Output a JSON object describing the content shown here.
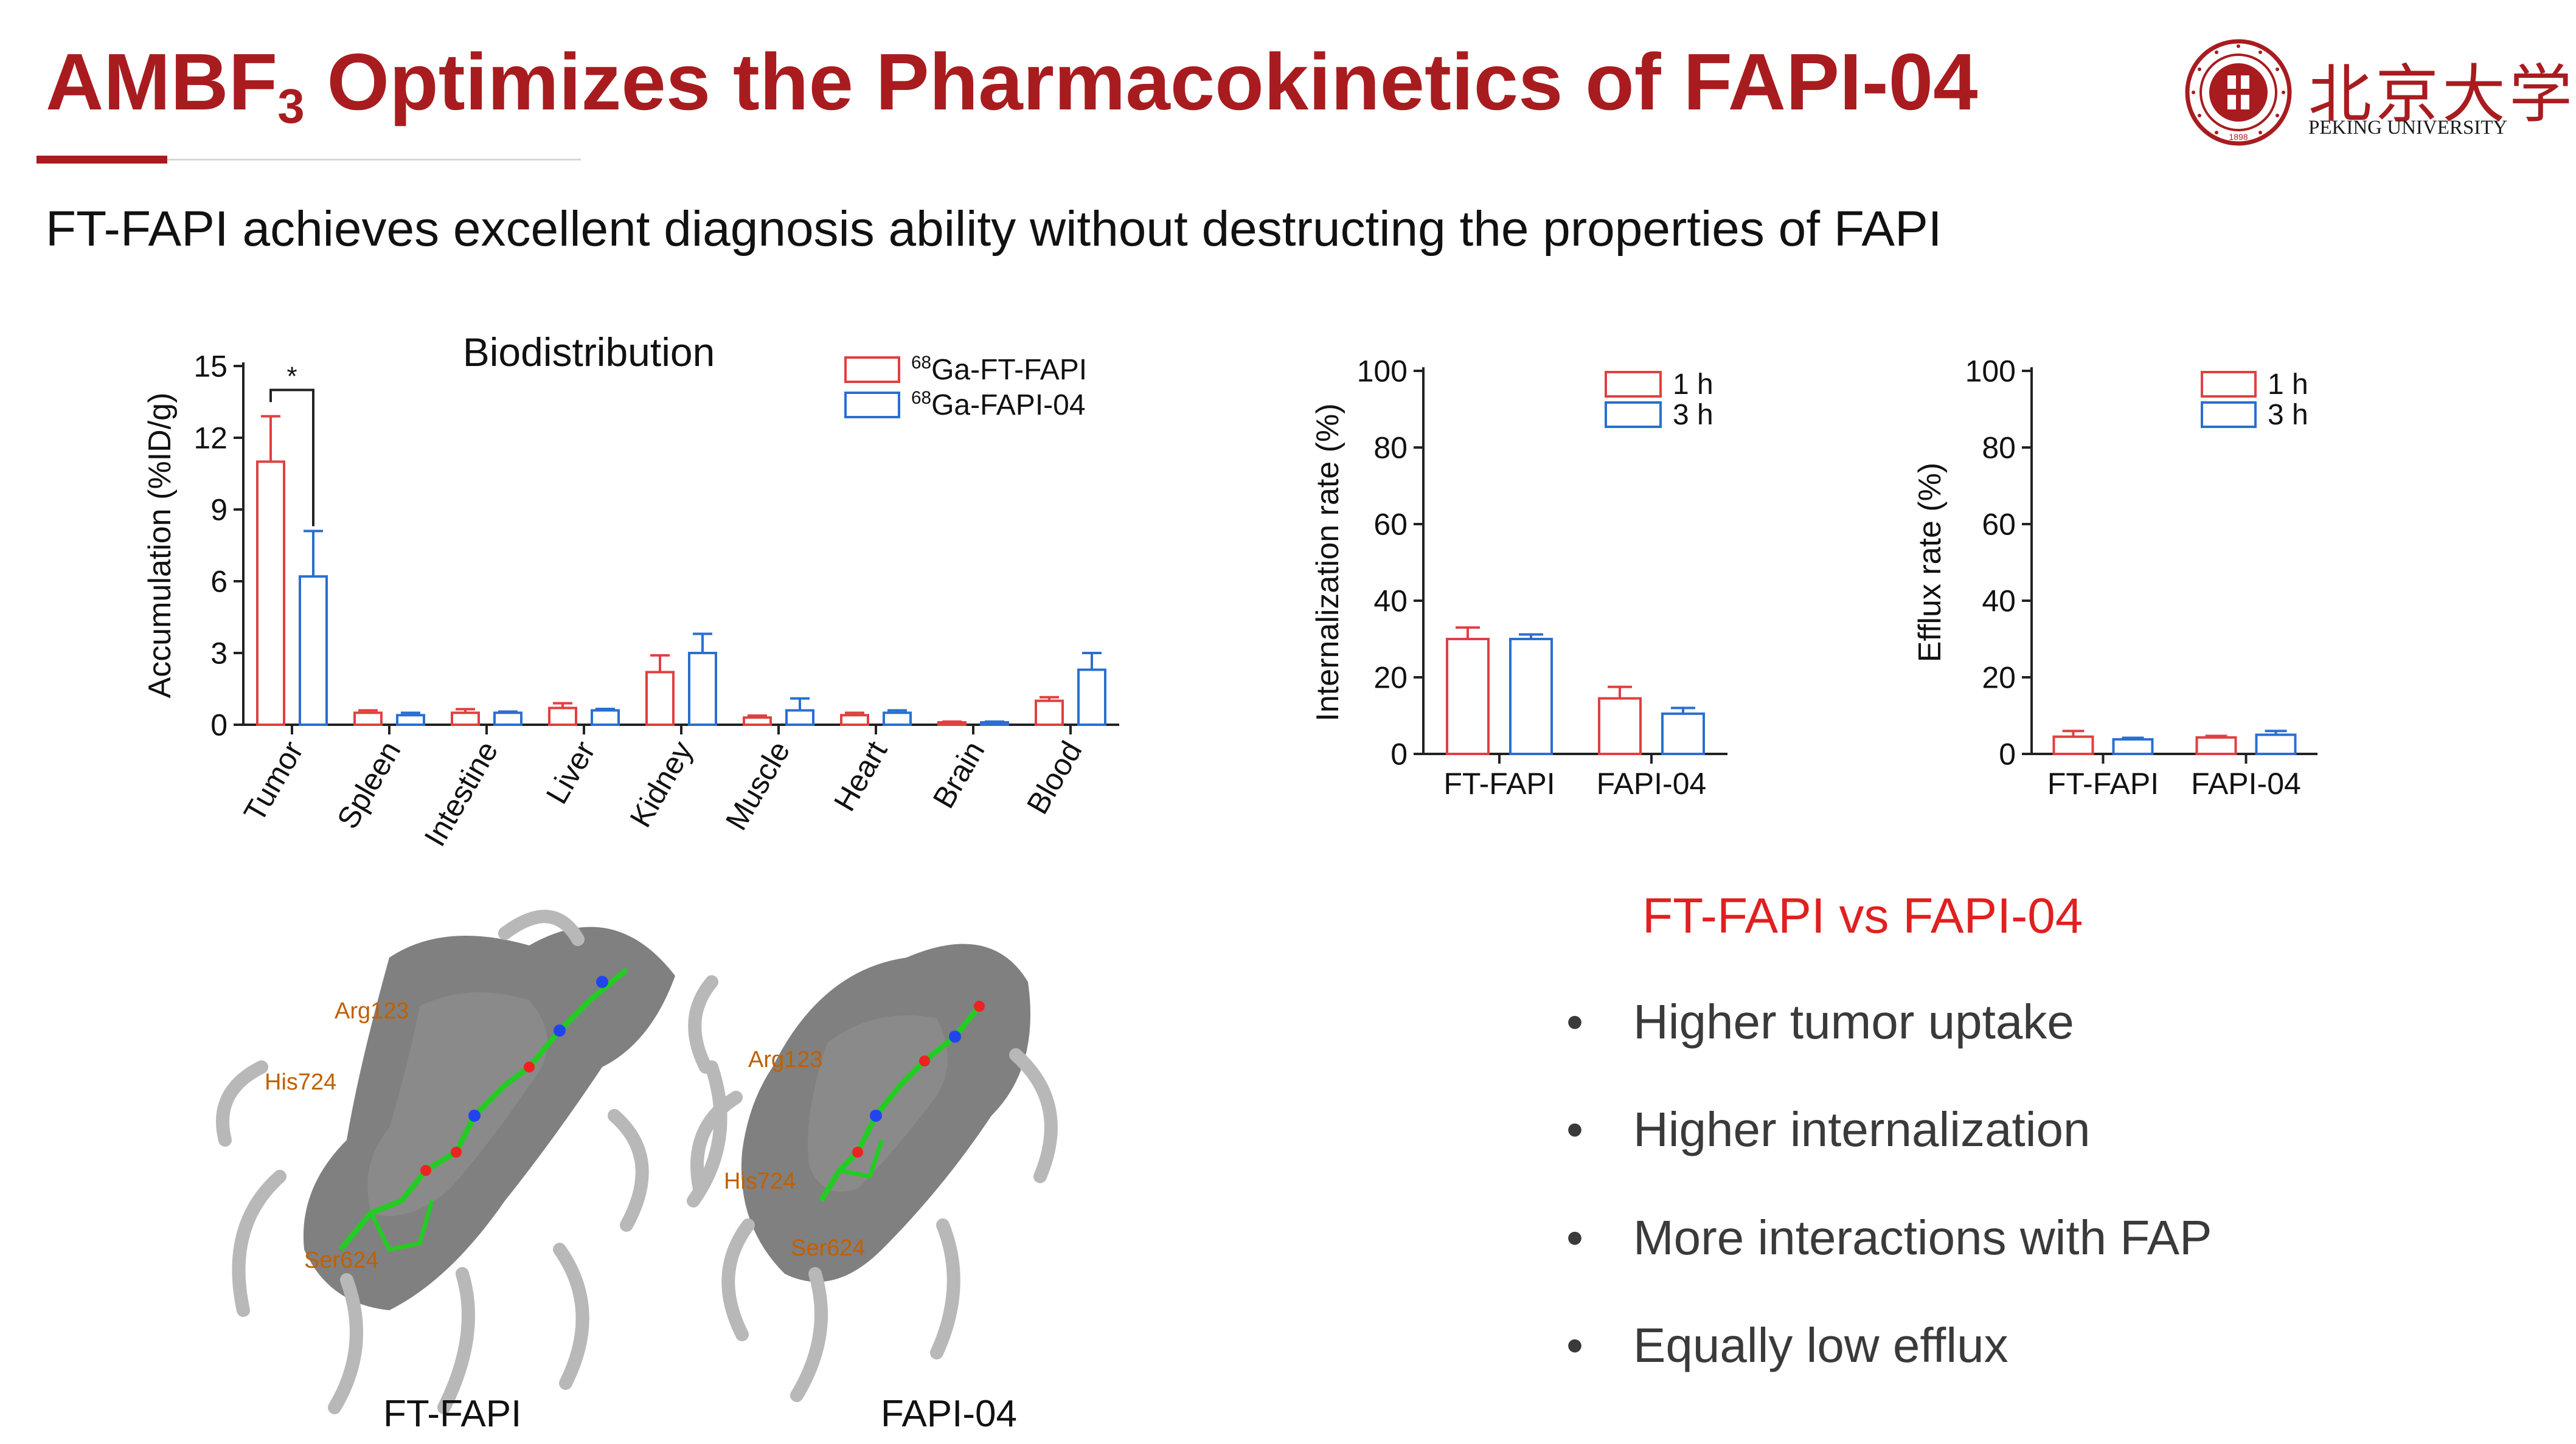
{
  "slide": {
    "title_main": "AMBF",
    "title_sub": "3",
    "title_rest": " Optimizes the Pharmacokinetics of FAPI-04",
    "subtitle": "FT-FAPI achieves excellent diagnosis ability without destructing the properties of FAPI",
    "logo": {
      "name_zh": "北京大学",
      "name_en": "PEKING UNIVERSITY",
      "seal_text": "PEKING UNIVERSITY",
      "seal_year": "1898"
    },
    "comparison": {
      "heading": "FT-FAPI vs FAPI-04",
      "bullet_glyph": "•",
      "bullets": [
        "Higher tumor uptake",
        "Higher internalization",
        "More interactions with FAP",
        "Equally low efflux"
      ]
    },
    "docking": {
      "labels": [
        "FT-FAPI",
        "FAPI-04"
      ],
      "residues": [
        "Arg123",
        "His724",
        "Ser624"
      ]
    },
    "colors": {
      "accent": "#a81c1f",
      "series_red": "#e04040",
      "series_blue": "#2a6fd0",
      "highlight": "#e02020"
    }
  },
  "chart_data": [
    {
      "type": "bar",
      "title": "Biodistribution",
      "ylabel": "Accumulation (%ID/g)",
      "xlabel": "",
      "ylim": [
        0,
        15
      ],
      "yticks": [
        0,
        3,
        6,
        9,
        12,
        15
      ],
      "categories": [
        "Tumor",
        "Spleen",
        "Intestine",
        "Liver",
        "Kidney",
        "Muscle",
        "Heart",
        "Brain",
        "Blood"
      ],
      "series": [
        {
          "name_sup": "68",
          "name": "Ga-FT-FAPI",
          "color": "#e04040",
          "values": [
            11.0,
            0.5,
            0.5,
            0.7,
            2.2,
            0.3,
            0.4,
            0.1,
            1.0
          ],
          "errors": [
            1.9,
            0.1,
            0.15,
            0.2,
            0.7,
            0.08,
            0.1,
            0.03,
            0.15
          ]
        },
        {
          "name_sup": "68",
          "name": "Ga-FAPI-04",
          "color": "#2a6fd0",
          "values": [
            6.2,
            0.4,
            0.5,
            0.6,
            3.0,
            0.6,
            0.5,
            0.1,
            2.3
          ],
          "errors": [
            1.9,
            0.1,
            0.05,
            0.06,
            0.8,
            0.5,
            0.1,
            0.03,
            0.7
          ]
        }
      ],
      "annotations": [
        {
          "text": "*",
          "between": "Tumor"
        }
      ],
      "legend": "top-right"
    },
    {
      "type": "bar",
      "ylabel": "Internalization rate (%)",
      "xlabel": "",
      "ylim": [
        0,
        100
      ],
      "yticks": [
        0,
        20,
        40,
        60,
        80,
        100
      ],
      "categories": [
        "FT-FAPI",
        "FAPI-04"
      ],
      "series": [
        {
          "name": "1 h",
          "color": "#e04040",
          "values": [
            30,
            14.5
          ],
          "errors": [
            3,
            3
          ]
        },
        {
          "name": "3 h",
          "color": "#2a6fd0",
          "values": [
            30,
            10.5
          ],
          "errors": [
            1.2,
            1.5
          ]
        }
      ],
      "legend": "top-right"
    },
    {
      "type": "bar",
      "ylabel": "Efflux rate (%)",
      "xlabel": "",
      "ylim": [
        0,
        100
      ],
      "yticks": [
        0,
        20,
        40,
        60,
        80,
        100
      ],
      "categories": [
        "FT-FAPI",
        "FAPI-04"
      ],
      "series": [
        {
          "name": "1 h",
          "color": "#e04040",
          "values": [
            4.5,
            4.3
          ],
          "errors": [
            1.5,
            0.4
          ]
        },
        {
          "name": "3 h",
          "color": "#2a6fd0",
          "values": [
            3.8,
            5.0
          ],
          "errors": [
            0.4,
            1
          ]
        }
      ],
      "legend": "top-right"
    }
  ]
}
